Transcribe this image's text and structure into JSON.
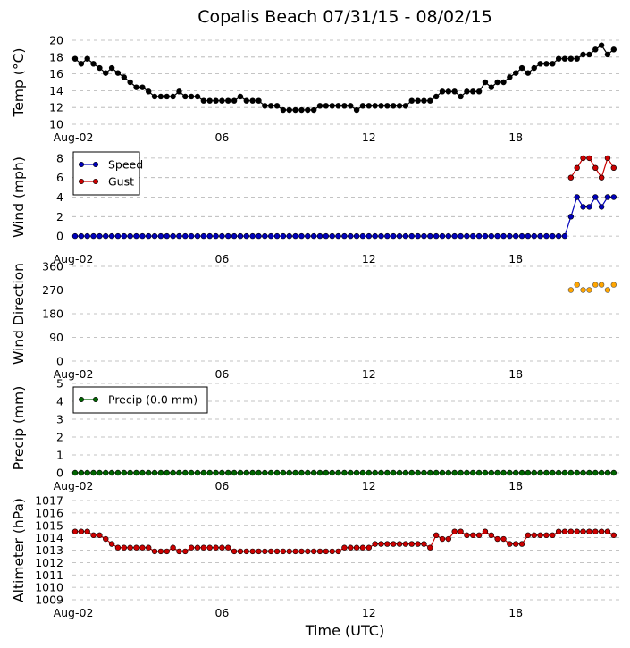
{
  "title": "Copalis Beach 07/31/15 - 08/02/15",
  "xlabel": "Time (UTC)",
  "x_tick_labels": [
    "Aug-02",
    "06",
    "12",
    "18"
  ],
  "x_tick_hours": [
    0,
    6,
    12,
    18
  ],
  "chart_data": [
    {
      "type": "line",
      "id": "temp",
      "ylabel": "Temp (°C)",
      "ylim": [
        10,
        20
      ],
      "yticks": [
        10,
        12,
        14,
        16,
        18,
        20
      ],
      "x_start_hour": 0.0,
      "x_step_hours": 0.25,
      "series": [
        {
          "name": "Temp",
          "color": "#000000",
          "values": [
            17.8,
            17.2,
            17.8,
            17.2,
            16.7,
            16.1,
            16.7,
            16.1,
            15.6,
            15.0,
            14.4,
            14.4,
            13.9,
            13.3,
            13.3,
            13.3,
            13.3,
            13.9,
            13.3,
            13.3,
            13.3,
            12.8,
            12.8,
            12.8,
            12.8,
            12.8,
            12.8,
            13.3,
            12.8,
            12.8,
            12.8,
            12.2,
            12.2,
            12.2,
            11.7,
            11.7,
            11.7,
            11.7,
            11.7,
            11.7,
            12.2,
            12.2,
            12.2,
            12.2,
            12.2,
            12.2,
            11.7,
            12.2,
            12.2,
            12.2,
            12.2,
            12.2,
            12.2,
            12.2,
            12.2,
            12.8,
            12.8,
            12.8,
            12.8,
            13.3,
            13.9,
            13.9,
            13.9,
            13.3,
            13.9,
            13.9,
            13.9,
            15.0,
            14.4,
            15.0,
            15.0,
            15.6,
            16.1,
            16.7,
            16.1,
            16.7,
            17.2,
            17.2,
            17.2,
            17.8,
            17.8,
            17.8,
            17.8,
            18.3,
            18.3,
            18.9,
            19.4,
            18.3,
            18.9
          ]
        }
      ]
    },
    {
      "type": "line",
      "id": "wind",
      "ylabel": "Wind (mph)",
      "ylim": [
        -1,
        9
      ],
      "yticks": [
        0,
        2,
        4,
        6,
        8
      ],
      "x_start_hour": 0.0,
      "x_step_hours": 0.25,
      "legend": "upper-left",
      "series": [
        {
          "name": "Speed",
          "color": "#0000bb",
          "values": [
            0,
            0,
            0,
            0,
            0,
            0,
            0,
            0,
            0,
            0,
            0,
            0,
            0,
            0,
            0,
            0,
            0,
            0,
            0,
            0,
            0,
            0,
            0,
            0,
            0,
            0,
            0,
            0,
            0,
            0,
            0,
            0,
            0,
            0,
            0,
            0,
            0,
            0,
            0,
            0,
            0,
            0,
            0,
            0,
            0,
            0,
            0,
            0,
            0,
            0,
            0,
            0,
            0,
            0,
            0,
            0,
            0,
            0,
            0,
            0,
            0,
            0,
            0,
            0,
            0,
            0,
            0,
            0,
            0,
            0,
            0,
            0,
            0,
            0,
            0,
            0,
            0,
            0,
            0,
            0,
            0,
            2,
            4,
            3,
            3,
            4,
            3,
            4,
            4
          ]
        },
        {
          "name": "Gust",
          "color": "#cc0000",
          "x_start_index": 81,
          "values": [
            6,
            7,
            8,
            8,
            7,
            6,
            8,
            7
          ]
        }
      ]
    },
    {
      "type": "scatter",
      "id": "dir",
      "ylabel": "Wind Direction",
      "ylim": [
        0,
        360
      ],
      "yticks": [
        0,
        90,
        180,
        270,
        360
      ],
      "x_start_hour": 20.25,
      "x_step_hours": 0.25,
      "series": [
        {
          "name": "Direction",
          "color": "#ffa500",
          "values": [
            270,
            290,
            270,
            270,
            290,
            290,
            270,
            290
          ]
        }
      ]
    },
    {
      "type": "line",
      "id": "precip",
      "ylabel": "Precip (mm)",
      "ylim": [
        0,
        5
      ],
      "yticks": [
        0,
        1,
        2,
        3,
        4,
        5
      ],
      "x_start_hour": 0.0,
      "x_step_hours": 0.25,
      "legend": "upper-left",
      "series": [
        {
          "name": "Precip (0.0 mm)",
          "color": "#006400",
          "values": [
            0,
            0,
            0,
            0,
            0,
            0,
            0,
            0,
            0,
            0,
            0,
            0,
            0,
            0,
            0,
            0,
            0,
            0,
            0,
            0,
            0,
            0,
            0,
            0,
            0,
            0,
            0,
            0,
            0,
            0,
            0,
            0,
            0,
            0,
            0,
            0,
            0,
            0,
            0,
            0,
            0,
            0,
            0,
            0,
            0,
            0,
            0,
            0,
            0,
            0,
            0,
            0,
            0,
            0,
            0,
            0,
            0,
            0,
            0,
            0,
            0,
            0,
            0,
            0,
            0,
            0,
            0,
            0,
            0,
            0,
            0,
            0,
            0,
            0,
            0,
            0,
            0,
            0,
            0,
            0,
            0,
            0,
            0,
            0,
            0,
            0,
            0,
            0,
            0
          ]
        }
      ]
    },
    {
      "type": "line",
      "id": "alt",
      "ylabel": "Altimeter (hPa)",
      "ylim": [
        1009,
        1017
      ],
      "yticks": [
        1009,
        1010,
        1011,
        1012,
        1013,
        1014,
        1015,
        1016,
        1017
      ],
      "x_start_hour": 0.0,
      "x_step_hours": 0.25,
      "series": [
        {
          "name": "Altimeter",
          "color": "#cc0000",
          "values": [
            1014.5,
            1014.5,
            1014.5,
            1014.2,
            1014.2,
            1013.9,
            1013.5,
            1013.2,
            1013.2,
            1013.2,
            1013.2,
            1013.2,
            1013.2,
            1012.9,
            1012.9,
            1012.9,
            1013.2,
            1012.9,
            1012.9,
            1013.2,
            1013.2,
            1013.2,
            1013.2,
            1013.2,
            1013.2,
            1013.2,
            1012.9,
            1012.9,
            1012.9,
            1012.9,
            1012.9,
            1012.9,
            1012.9,
            1012.9,
            1012.9,
            1012.9,
            1012.9,
            1012.9,
            1012.9,
            1012.9,
            1012.9,
            1012.9,
            1012.9,
            1012.9,
            1013.2,
            1013.2,
            1013.2,
            1013.2,
            1013.2,
            1013.5,
            1013.5,
            1013.5,
            1013.5,
            1013.5,
            1013.5,
            1013.5,
            1013.5,
            1013.5,
            1013.2,
            1014.2,
            1013.9,
            1013.9,
            1014.5,
            1014.5,
            1014.2,
            1014.2,
            1014.2,
            1014.5,
            1014.2,
            1013.9,
            1013.9,
            1013.5,
            1013.5,
            1013.5,
            1014.2,
            1014.2,
            1014.2,
            1014.2,
            1014.2,
            1014.5,
            1014.5,
            1014.5,
            1014.5,
            1014.5,
            1014.5,
            1014.5,
            1014.5,
            1014.5,
            1014.2
          ]
        }
      ]
    }
  ]
}
